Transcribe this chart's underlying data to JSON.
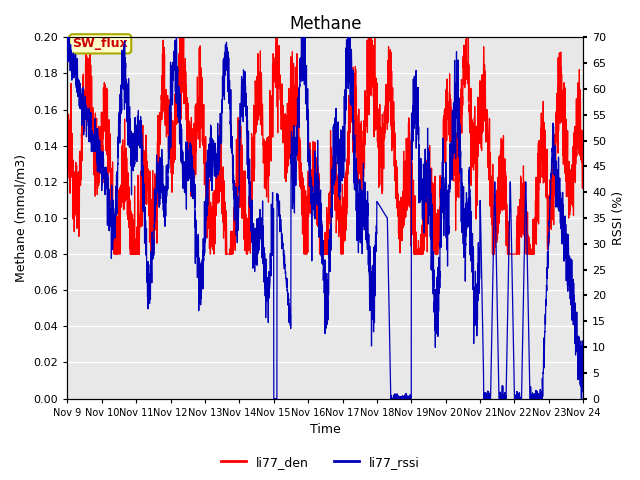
{
  "title": "Methane",
  "ylabel_left": "Methane (mmol/m3)",
  "ylabel_right": "RSSI (%)",
  "xlabel": "Time",
  "ylim_left": [
    0.0,
    0.2
  ],
  "ylim_right": [
    0,
    70
  ],
  "yticks_left": [
    0.0,
    0.02,
    0.04,
    0.06,
    0.08,
    0.1,
    0.12,
    0.14,
    0.16,
    0.18,
    0.2
  ],
  "yticks_right": [
    0,
    5,
    10,
    15,
    20,
    25,
    30,
    35,
    40,
    45,
    50,
    55,
    60,
    65,
    70
  ],
  "xtick_labels": [
    "Nov 9",
    "Nov 10",
    "Nov 11",
    "Nov 12",
    "Nov 13",
    "Nov 14",
    "Nov 15",
    "Nov 16",
    "Nov 17",
    "Nov 18",
    "Nov 19",
    "Nov 20",
    "Nov 21",
    "Nov 22",
    "Nov 23",
    "Nov 24"
  ],
  "color_den": "#ff0000",
  "color_rssi": "#0000bb",
  "background_color": "#e8e8e8",
  "sw_flux_box_facecolor": "#ffffcc",
  "sw_flux_box_edgecolor": "#aaaa00",
  "sw_flux_text_color": "#cc0000",
  "legend_den": "li77_den",
  "legend_rssi": "li77_rssi"
}
